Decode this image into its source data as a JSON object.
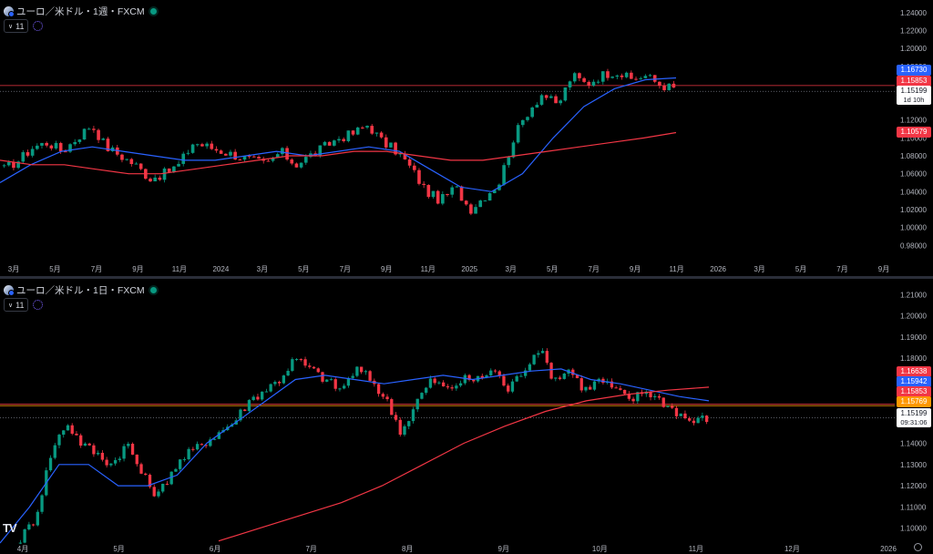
{
  "panes": [
    {
      "id": "weekly",
      "legend": "ユーロ／米ドル・1週・FXCM",
      "indicator_count": "11",
      "price_tags": [
        {
          "label": "1.16730",
          "color": "#2962ff"
        },
        {
          "label": "1.15853",
          "color": "#f23645"
        },
        {
          "label": "1.15199",
          "color": "#ffffff",
          "sub": "1d 10h"
        },
        {
          "label": "1.10579",
          "color": "#f23645"
        }
      ]
    },
    {
      "id": "daily",
      "legend": "ユーロ／米ドル・1日・FXCM",
      "indicator_count": "11",
      "price_tags": [
        {
          "label": "1.16638",
          "color": "#f23645"
        },
        {
          "label": "1.15942",
          "color": "#2962ff"
        },
        {
          "label": "1.15853",
          "color": "#f23645"
        },
        {
          "label": "1.15769",
          "color": "#ff9800"
        },
        {
          "label": "1.15199",
          "color": "#ffffff",
          "sub": "09:31:06"
        }
      ]
    }
  ],
  "chart_data": [
    {
      "type": "candlestick",
      "title": "ユーロ／米ドル・1週・FXCM",
      "ylim": [
        0.965,
        1.25
      ],
      "y_ticks": [
        "1.24000",
        "1.22000",
        "1.20000",
        "1.18000",
        "1.16000",
        "1.14000",
        "1.12000",
        "1.10000",
        "1.08000",
        "1.06000",
        "1.04000",
        "1.02000",
        "1.00000",
        "0.98000"
      ],
      "x_ticks": [
        "3月",
        "5月",
        "7月",
        "9月",
        "11月",
        "2024",
        "3月",
        "5月",
        "7月",
        "9月",
        "11月",
        "2025",
        "3月",
        "5月",
        "7月",
        "9月",
        "11月",
        "2026",
        "3月",
        "5月",
        "7月",
        "9月"
      ],
      "close_anchors": [
        1.065,
        1.075,
        1.09,
        1.095,
        1.085,
        1.1,
        1.115,
        1.09,
        1.08,
        1.07,
        1.055,
        1.06,
        1.07,
        1.095,
        1.09,
        1.085,
        1.08,
        1.075,
        1.07,
        1.085,
        1.07,
        1.08,
        1.09,
        1.1,
        1.105,
        1.115,
        1.095,
        1.085,
        1.065,
        1.04,
        1.03,
        1.045,
        1.02,
        1.035,
        1.05,
        1.1,
        1.13,
        1.15,
        1.135,
        1.17,
        1.16,
        1.17,
        1.175,
        1.165,
        1.17,
        1.16,
        1.155
      ],
      "series": [
        {
          "name": "",
          "color": "#2962ff",
          "values": [
            1.05,
            1.07,
            1.085,
            1.09,
            1.085,
            1.08,
            1.075,
            1.075,
            1.08,
            1.085,
            1.08,
            1.085,
            1.09,
            1.085,
            1.065,
            1.045,
            1.04,
            1.06,
            1.1,
            1.135,
            1.155,
            1.165,
            1.167
          ]
        },
        {
          "name": "",
          "color": "#f23645",
          "values": [
            1.075,
            1.07,
            1.07,
            1.065,
            1.06,
            1.06,
            1.065,
            1.07,
            1.075,
            1.08,
            1.08,
            1.085,
            1.085,
            1.08,
            1.075,
            1.075,
            1.08,
            1.085,
            1.09,
            1.095,
            1.1,
            1.106
          ]
        }
      ],
      "levels": [
        1.1585,
        1.152
      ]
    },
    {
      "type": "candlestick",
      "title": "ユーロ／米ドル・1日・FXCM",
      "ylim": [
        1.093,
        1.214
      ],
      "y_ticks": [
        "1.21000",
        "1.20000",
        "1.19000",
        "1.18000",
        "1.17000",
        "1.16000",
        "1.15000",
        "1.14000",
        "1.13000",
        "1.12000",
        "1.11000",
        "1.10000"
      ],
      "x_ticks": [
        "4月",
        "5月",
        "6月",
        "7月",
        "8月",
        "9月",
        "10月",
        "11月",
        "12月",
        "2026"
      ],
      "close_anchors": [
        1.095,
        1.105,
        1.135,
        1.15,
        1.14,
        1.135,
        1.13,
        1.14,
        1.125,
        1.115,
        1.128,
        1.135,
        1.14,
        1.145,
        1.15,
        1.16,
        1.165,
        1.17,
        1.18,
        1.175,
        1.17,
        1.165,
        1.175,
        1.17,
        1.16,
        1.145,
        1.16,
        1.17,
        1.165,
        1.17,
        1.17,
        1.175,
        1.165,
        1.175,
        1.185,
        1.17,
        1.175,
        1.165,
        1.17,
        1.165,
        1.16,
        1.165,
        1.16,
        1.155,
        1.15,
        1.152
      ],
      "series": [
        {
          "name": "",
          "color": "#2962ff",
          "values": [
            1.093,
            1.11,
            1.13,
            1.13,
            1.12,
            1.12,
            1.125,
            1.14,
            1.15,
            1.16,
            1.17,
            1.172,
            1.17,
            1.168,
            1.17,
            1.172,
            1.17,
            1.172,
            1.174,
            1.175,
            1.17,
            1.168,
            1.165,
            1.162,
            1.16
          ]
        },
        {
          "name": "",
          "color": "#f23645",
          "values": [
            1.094,
            1.1,
            1.106,
            1.112,
            1.12,
            1.13,
            1.14,
            1.148,
            1.155,
            1.16,
            1.163,
            1.165,
            1.1664
          ]
        }
      ],
      "levels": [
        1.1585,
        1.1577,
        1.152
      ]
    }
  ]
}
